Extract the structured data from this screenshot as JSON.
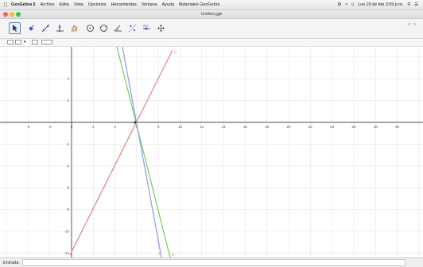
{
  "menubar": {
    "app_name": "GeoGebra 5",
    "items": [
      "Archivo",
      "Edita",
      "Vista",
      "Opciones",
      "Herramientas",
      "Ventana",
      "Ayuda",
      "Materiales GeoGebra"
    ],
    "clock": "Lun 20 de feb 3:09 p.m."
  },
  "window": {
    "title": "Untitled.ggb"
  },
  "toolbar": {
    "tools": [
      "move-tool",
      "point-tool",
      "line-tool",
      "perpendicular-tool",
      "polygon-tool",
      "circle-tool",
      "circle-three-points-tool",
      "angle-tool",
      "reflect-tool",
      "slider-tool",
      "move-graphics-tool"
    ]
  },
  "graphics": {
    "x_labels": [
      "-4",
      "-2",
      "0",
      "2",
      "4",
      "6",
      "8",
      "10",
      "12",
      "14",
      "16",
      "18",
      "20",
      "22",
      "24",
      "26",
      "28",
      "30"
    ],
    "y_labels": [
      "4",
      "2",
      "-2",
      "-4",
      "-6",
      "-8",
      "-10",
      "-12"
    ],
    "lines": [
      {
        "name": "lines-red",
        "label": "h",
        "color": "#e08a8a"
      },
      {
        "name": "lines-green",
        "label": "g",
        "color": "#7fcf6a"
      },
      {
        "name": "lines-blue",
        "label": "f",
        "color": "#8fa6e6"
      }
    ]
  },
  "inputbar": {
    "label": "Entrada:",
    "value": ""
  },
  "colors": {
    "axes": "#4a4a4a",
    "grid": "#e6e6e6",
    "accent": "#5b7fc4"
  }
}
